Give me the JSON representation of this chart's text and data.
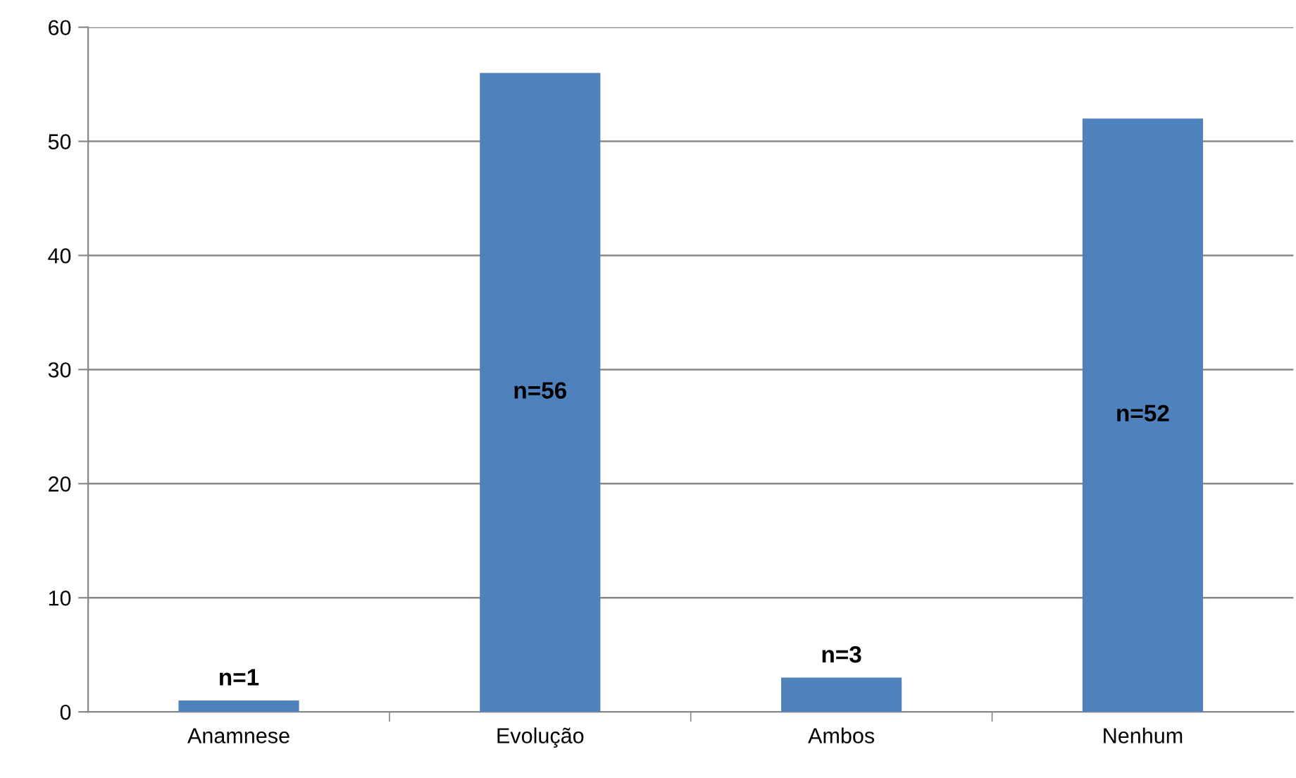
{
  "chart_data": {
    "type": "bar",
    "categories": [
      "Anamnese",
      "Evolução",
      "Ambos",
      "Nenhum"
    ],
    "values": [
      1,
      56,
      3,
      52
    ],
    "value_labels": [
      "n=1",
      "n=56",
      "n=3",
      "n=52"
    ],
    "color": "#4f81bd",
    "ylim": [
      0,
      60
    ],
    "yticks": [
      0,
      10,
      20,
      30,
      40,
      50,
      60
    ],
    "grid": "y"
  }
}
